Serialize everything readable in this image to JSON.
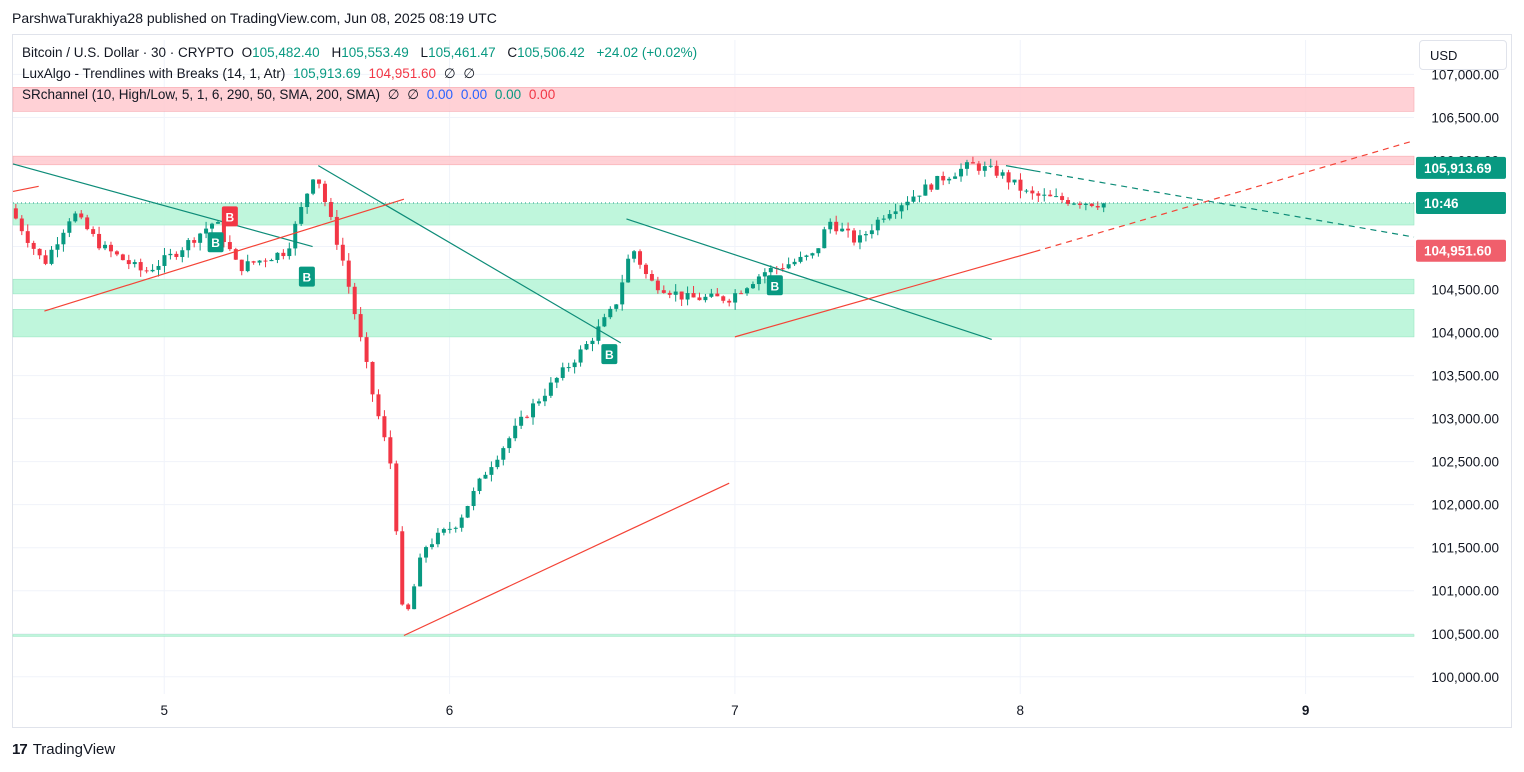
{
  "header": {
    "publish_line": "ParshwaTurakhiya28 published on TradingView.com, Jun 08, 2025 08:19 UTC"
  },
  "legend": {
    "symbol": "Bitcoin / U.S. Dollar · 30 · CRYPTO",
    "o_label": "O",
    "o_value": "105,482.40",
    "h_label": "H",
    "h_value": "105,553.49",
    "l_label": "L",
    "l_value": "105,461.47",
    "c_label": "C",
    "c_value": "105,506.42",
    "change": "+24.02 (+0.02%)",
    "luxalgo_name": "LuxAlgo - Trendlines with Breaks (14, 1, Atr)",
    "luxalgo_v1": "105,913.69",
    "luxalgo_v2": "104,951.60",
    "luxalgo_v3": "∅",
    "luxalgo_v4": "∅",
    "sr_name": "SRchannel (10, High/Low, 5, 1, 6, 290, 50, SMA, 200, SMA)",
    "sr_v1": "∅",
    "sr_v2": "∅",
    "sr_v3": "0.00",
    "sr_v4": "0.00",
    "sr_v5": "0.00",
    "sr_v6": "0.00"
  },
  "currency_button": "USD",
  "footer": {
    "logo": "17",
    "brand": "TradingView"
  },
  "colors": {
    "up": "#089981",
    "down": "#f23645",
    "resistance_zone": "#ffcdd2",
    "support_zone": "#b9f6d9",
    "grid": "#f0f3fa",
    "teal_line": "#0d8c78",
    "red_line": "#f44336"
  },
  "chart_data": {
    "type": "candlestick",
    "title": "Bitcoin / U.S. Dollar · 30 · CRYPTO",
    "ylim": [
      99800,
      107400
    ],
    "y_ticks": [
      100000,
      100500,
      101000,
      101500,
      102000,
      102500,
      103000,
      103500,
      104000,
      104500,
      105000,
      105500,
      106000,
      106500,
      107000
    ],
    "y_tick_labels": [
      "100,000.00",
      "100,500.00",
      "101,000.00",
      "101,500.00",
      "102,000.00",
      "102,500.00",
      "103,000.00",
      "103,500.00",
      "104,000.00",
      "104,500.00",
      "105,000.00",
      "105,500.00",
      "106,000.00",
      "106,500.00",
      "107,000.00"
    ],
    "x_range_days": [
      4.47,
      9.38
    ],
    "x_ticks": [
      5,
      6,
      7,
      8,
      9
    ],
    "x_tick_labels": [
      "5",
      "6",
      "7",
      "8",
      "9"
    ],
    "zones": [
      {
        "kind": "resistance",
        "low": 106570,
        "high": 106850
      },
      {
        "kind": "resistance",
        "low": 105950,
        "high": 106050
      },
      {
        "kind": "support",
        "low": 105250,
        "high": 105500
      },
      {
        "kind": "support",
        "low": 104450,
        "high": 104620
      },
      {
        "kind": "support",
        "low": 103950,
        "high": 104270
      },
      {
        "kind": "support",
        "low": 100470,
        "high": 100490
      }
    ],
    "trendlines": [
      {
        "color": "teal",
        "x1": 4.47,
        "y1": 105960,
        "x2": 5.52,
        "y2": 105000,
        "style": "solid"
      },
      {
        "color": "teal",
        "x1": 5.54,
        "y1": 105940,
        "x2": 6.6,
        "y2": 103880,
        "style": "solid"
      },
      {
        "color": "teal",
        "x1": 6.62,
        "y1": 105320,
        "x2": 7.9,
        "y2": 103920,
        "style": "solid"
      },
      {
        "color": "teal",
        "x1": 7.95,
        "y1": 105940,
        "x2": 8.05,
        "y2": 105880,
        "style": "solid"
      },
      {
        "color": "teal",
        "x1": 8.05,
        "y1": 105880,
        "x2": 9.38,
        "y2": 105110,
        "style": "dashed"
      },
      {
        "color": "red",
        "x1": 4.47,
        "y1": 105640,
        "x2": 4.56,
        "y2": 105700,
        "style": "solid"
      },
      {
        "color": "red",
        "x1": 4.58,
        "y1": 104250,
        "x2": 5.84,
        "y2": 105550,
        "style": "solid"
      },
      {
        "color": "red",
        "x1": 5.84,
        "y1": 100480,
        "x2": 6.98,
        "y2": 102250,
        "style": "solid"
      },
      {
        "color": "red",
        "x1": 7.0,
        "y1": 103950,
        "x2": 8.05,
        "y2": 104940,
        "style": "solid"
      },
      {
        "color": "red",
        "x1": 8.05,
        "y1": 104940,
        "x2": 9.38,
        "y2": 106230,
        "style": "dashed"
      }
    ],
    "break_labels": [
      {
        "x": 5.18,
        "y": 105050,
        "type": "B",
        "color": "up"
      },
      {
        "x": 5.23,
        "y": 105350,
        "type": "B",
        "color": "down"
      },
      {
        "x": 5.5,
        "y": 104650,
        "type": "B",
        "color": "up"
      },
      {
        "x": 6.56,
        "y": 103750,
        "type": "B",
        "color": "up"
      },
      {
        "x": 7.14,
        "y": 104550,
        "type": "B",
        "color": "up"
      }
    ],
    "price_tags": [
      {
        "value": "105,913.69",
        "y": 105913.69,
        "color": "up"
      },
      {
        "value": "10:46",
        "y": 105506.42,
        "color": "up"
      },
      {
        "value": "104,951.60",
        "y": 104951.6,
        "color": "down"
      }
    ],
    "anchors": [
      [
        4.47,
        105500
      ],
      [
        4.55,
        105050
      ],
      [
        4.6,
        104800
      ],
      [
        4.7,
        105400
      ],
      [
        4.8,
        105000
      ],
      [
        4.95,
        104700
      ],
      [
        5.05,
        104900
      ],
      [
        5.2,
        105300
      ],
      [
        5.28,
        104750
      ],
      [
        5.45,
        104950
      ],
      [
        5.55,
        105900
      ],
      [
        5.65,
        104800
      ],
      [
        5.75,
        103300
      ],
      [
        5.82,
        102400
      ],
      [
        5.86,
        100550
      ],
      [
        5.93,
        101500
      ],
      [
        6.05,
        101800
      ],
      [
        6.15,
        102400
      ],
      [
        6.3,
        103100
      ],
      [
        6.5,
        103850
      ],
      [
        6.6,
        104300
      ],
      [
        6.66,
        105000
      ],
      [
        6.72,
        104600
      ],
      [
        6.85,
        104400
      ],
      [
        7.0,
        104400
      ],
      [
        7.12,
        104700
      ],
      [
        7.3,
        104900
      ],
      [
        7.35,
        105300
      ],
      [
        7.45,
        105050
      ],
      [
        7.55,
        105400
      ],
      [
        7.65,
        105600
      ],
      [
        7.75,
        105800
      ],
      [
        7.85,
        105950
      ],
      [
        7.95,
        105850
      ],
      [
        8.05,
        105600
      ],
      [
        8.15,
        105550
      ],
      [
        8.3,
        105500
      ]
    ]
  }
}
